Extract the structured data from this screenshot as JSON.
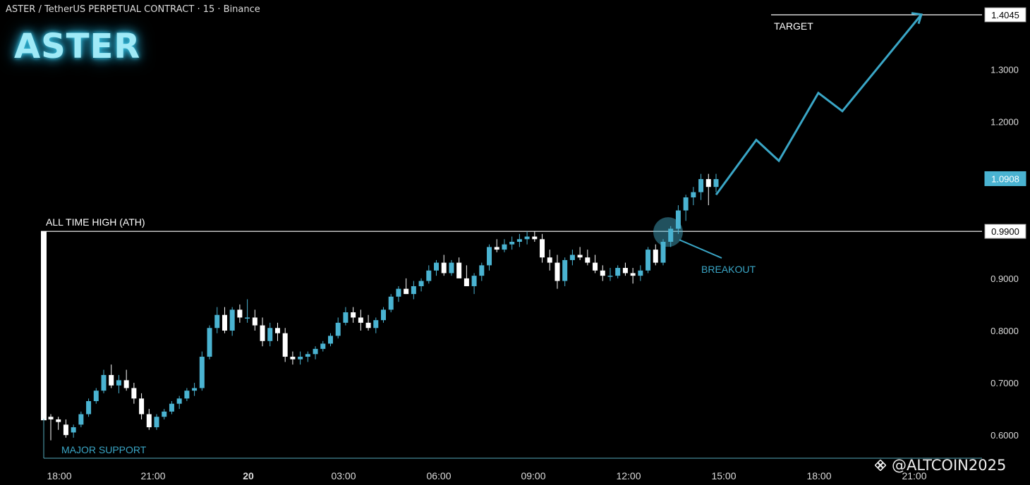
{
  "header": {
    "title": "ASTER / TetherUS PERPETUAL CONTRACT · 15 · Binance",
    "brand": "ASTER"
  },
  "watermark": {
    "text": "@ALTCOIN2025",
    "icon": "binance-square-icon"
  },
  "colors": {
    "background": "#000000",
    "bull": "#4ab3d1",
    "bear": "#ffffff",
    "accent": "#3aa6c6",
    "grid_line": "#ffffff"
  },
  "chart_data": {
    "type": "candlestick",
    "symbol": "ASTER / TetherUS PERPETUAL CONTRACT",
    "timeframe": "15",
    "exchange": "Binance",
    "x_ticks": [
      "18:00",
      "21:00",
      "20",
      "03:00",
      "06:00",
      "09:00",
      "12:00",
      "15:00",
      "18:00",
      "21:00"
    ],
    "y_ticks": [
      "1.3000",
      "1.2000",
      "0.9000",
      "0.8000",
      "0.7000",
      "0.6000"
    ],
    "ylim": [
      0.555,
      1.43
    ],
    "price_labels": [
      {
        "text": "1.4045",
        "value": 1.4045,
        "style": "white"
      },
      {
        "text": "1.0908",
        "value": 1.0908,
        "style": "accent"
      },
      {
        "text": "0.9900",
        "value": 0.99,
        "style": "white"
      }
    ],
    "levels": [
      {
        "name": "ALL TIME HIGH (ATH)",
        "value": 0.99
      },
      {
        "name": "TARGET",
        "value": 1.4045
      },
      {
        "name": "MAJOR SUPPORT",
        "value": 0.58
      }
    ],
    "annotations": {
      "breakout": "BREAKOUT",
      "ath": "ALL TIME HIGH (ATH)",
      "target": "TARGET",
      "support": "MAJOR SUPPORT"
    },
    "candles": [
      [
        0.635,
        0.64,
        0.59,
        0.63
      ],
      [
        0.63,
        0.635,
        0.61,
        0.625
      ],
      [
        0.62,
        0.63,
        0.595,
        0.6
      ],
      [
        0.605,
        0.62,
        0.595,
        0.615
      ],
      [
        0.62,
        0.645,
        0.615,
        0.64
      ],
      [
        0.64,
        0.67,
        0.635,
        0.665
      ],
      [
        0.665,
        0.69,
        0.66,
        0.685
      ],
      [
        0.685,
        0.725,
        0.68,
        0.715
      ],
      [
        0.715,
        0.735,
        0.69,
        0.695
      ],
      [
        0.695,
        0.715,
        0.68,
        0.705
      ],
      [
        0.705,
        0.725,
        0.685,
        0.69
      ],
      [
        0.69,
        0.7,
        0.66,
        0.67
      ],
      [
        0.67,
        0.68,
        0.63,
        0.64
      ],
      [
        0.64,
        0.65,
        0.61,
        0.615
      ],
      [
        0.615,
        0.64,
        0.61,
        0.635
      ],
      [
        0.635,
        0.65,
        0.63,
        0.645
      ],
      [
        0.645,
        0.665,
        0.64,
        0.66
      ],
      [
        0.66,
        0.675,
        0.65,
        0.67
      ],
      [
        0.67,
        0.69,
        0.665,
        0.685
      ],
      [
        0.685,
        0.7,
        0.675,
        0.69
      ],
      [
        0.69,
        0.76,
        0.685,
        0.75
      ],
      [
        0.75,
        0.81,
        0.745,
        0.805
      ],
      [
        0.805,
        0.845,
        0.795,
        0.83
      ],
      [
        0.83,
        0.845,
        0.795,
        0.8
      ],
      [
        0.8,
        0.845,
        0.79,
        0.84
      ],
      [
        0.84,
        0.85,
        0.815,
        0.825
      ],
      [
        0.825,
        0.86,
        0.815,
        0.825
      ],
      [
        0.825,
        0.84,
        0.8,
        0.81
      ],
      [
        0.81,
        0.825,
        0.77,
        0.78
      ],
      [
        0.78,
        0.815,
        0.77,
        0.805
      ],
      [
        0.805,
        0.815,
        0.78,
        0.795
      ],
      [
        0.795,
        0.805,
        0.74,
        0.75
      ],
      [
        0.75,
        0.76,
        0.735,
        0.745
      ],
      [
        0.745,
        0.76,
        0.735,
        0.75
      ],
      [
        0.75,
        0.76,
        0.74,
        0.755
      ],
      [
        0.755,
        0.77,
        0.745,
        0.765
      ],
      [
        0.765,
        0.78,
        0.76,
        0.775
      ],
      [
        0.775,
        0.795,
        0.77,
        0.79
      ],
      [
        0.79,
        0.825,
        0.785,
        0.815
      ],
      [
        0.815,
        0.845,
        0.81,
        0.835
      ],
      [
        0.835,
        0.845,
        0.815,
        0.825
      ],
      [
        0.825,
        0.84,
        0.8,
        0.815
      ],
      [
        0.815,
        0.83,
        0.8,
        0.805
      ],
      [
        0.805,
        0.825,
        0.795,
        0.82
      ],
      [
        0.82,
        0.845,
        0.815,
        0.84
      ],
      [
        0.84,
        0.87,
        0.835,
        0.865
      ],
      [
        0.865,
        0.885,
        0.855,
        0.88
      ],
      [
        0.88,
        0.9,
        0.87,
        0.87
      ],
      [
        0.87,
        0.895,
        0.86,
        0.885
      ],
      [
        0.885,
        0.9,
        0.875,
        0.895
      ],
      [
        0.895,
        0.925,
        0.89,
        0.915
      ],
      [
        0.915,
        0.935,
        0.905,
        0.93
      ],
      [
        0.93,
        0.945,
        0.905,
        0.91
      ],
      [
        0.91,
        0.935,
        0.905,
        0.93
      ],
      [
        0.93,
        0.94,
        0.905,
        0.9
      ],
      [
        0.9,
        0.925,
        0.885,
        0.885
      ],
      [
        0.885,
        0.91,
        0.87,
        0.905
      ],
      [
        0.905,
        0.93,
        0.895,
        0.925
      ],
      [
        0.925,
        0.965,
        0.915,
        0.96
      ],
      [
        0.96,
        0.975,
        0.95,
        0.955
      ],
      [
        0.955,
        0.975,
        0.95,
        0.965
      ],
      [
        0.965,
        0.98,
        0.955,
        0.97
      ],
      [
        0.97,
        0.985,
        0.96,
        0.975
      ],
      [
        0.975,
        0.99,
        0.965,
        0.98
      ],
      [
        0.98,
        0.99,
        0.97,
        0.975
      ],
      [
        0.975,
        0.985,
        0.93,
        0.94
      ],
      [
        0.94,
        0.955,
        0.915,
        0.93
      ],
      [
        0.93,
        0.945,
        0.88,
        0.895
      ],
      [
        0.895,
        0.94,
        0.885,
        0.935
      ],
      [
        0.935,
        0.955,
        0.925,
        0.945
      ],
      [
        0.945,
        0.96,
        0.935,
        0.94
      ],
      [
        0.94,
        0.955,
        0.925,
        0.93
      ],
      [
        0.93,
        0.945,
        0.91,
        0.915
      ],
      [
        0.915,
        0.925,
        0.895,
        0.905
      ],
      [
        0.905,
        0.92,
        0.895,
        0.905
      ],
      [
        0.905,
        0.925,
        0.9,
        0.92
      ],
      [
        0.92,
        0.93,
        0.905,
        0.91
      ],
      [
        0.91,
        0.92,
        0.89,
        0.905
      ],
      [
        0.905,
        0.925,
        0.895,
        0.915
      ],
      [
        0.915,
        0.96,
        0.91,
        0.955
      ],
      [
        0.955,
        0.965,
        0.925,
        0.93
      ],
      [
        0.93,
        0.975,
        0.925,
        0.97
      ],
      [
        0.97,
        1.0,
        0.96,
        0.995
      ],
      [
        0.995,
        1.04,
        0.985,
        1.03
      ],
      [
        1.03,
        1.06,
        1.01,
        1.055
      ],
      [
        1.055,
        1.075,
        1.04,
        1.065
      ],
      [
        1.065,
        1.1,
        1.05,
        1.09
      ],
      [
        1.09,
        1.1,
        1.04,
        1.075
      ],
      [
        1.075,
        1.1,
        1.065,
        1.09
      ]
    ],
    "projection": [
      1.06,
      1.165,
      1.125,
      1.255,
      1.22,
      1.405
    ]
  }
}
